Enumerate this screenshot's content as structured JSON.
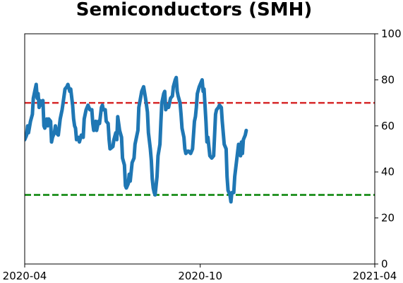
{
  "chart_data": {
    "type": "line",
    "title": "Semiconductors (SMH)",
    "xlabel": "",
    "ylabel": "",
    "x_axis": {
      "type": "date",
      "range": [
        "2020-04-01",
        "2021-04-01"
      ],
      "ticks": [
        {
          "value": "2020-04-01",
          "label": "2020-04"
        },
        {
          "value": "2020-10-01",
          "label": "2020-10"
        },
        {
          "value": "2021-04-01",
          "label": "2021-04"
        }
      ]
    },
    "y_axis": {
      "side": "right",
      "range": [
        0,
        100
      ],
      "ticks": [
        0,
        20,
        40,
        60,
        80,
        100
      ]
    },
    "grid": false,
    "reference_lines": [
      {
        "value": 70,
        "color": "#d62728",
        "style": "dashed"
      },
      {
        "value": 30,
        "color": "#008000",
        "style": "dashed"
      }
    ],
    "series": [
      {
        "color": "#1f77b4",
        "points": [
          [
            "2020-04-01",
            54
          ],
          [
            "2020-04-03",
            56
          ],
          [
            "2020-04-04",
            60
          ],
          [
            "2020-04-05",
            57
          ],
          [
            "2020-04-07",
            62
          ],
          [
            "2020-04-09",
            65
          ],
          [
            "2020-04-10",
            72
          ],
          [
            "2020-04-12",
            76
          ],
          [
            "2020-04-13",
            78
          ],
          [
            "2020-04-14",
            72
          ],
          [
            "2020-04-15",
            74
          ],
          [
            "2020-04-16",
            68
          ],
          [
            "2020-04-17",
            71
          ],
          [
            "2020-04-18",
            69
          ],
          [
            "2020-04-20",
            71
          ],
          [
            "2020-04-21",
            60
          ],
          [
            "2020-04-22",
            59
          ],
          [
            "2020-04-24",
            63
          ],
          [
            "2020-04-25",
            60
          ],
          [
            "2020-04-26",
            63
          ],
          [
            "2020-04-28",
            62
          ],
          [
            "2020-04-29",
            53
          ],
          [
            "2020-04-30",
            55
          ],
          [
            "2020-05-02",
            57
          ],
          [
            "2020-05-03",
            60
          ],
          [
            "2020-05-04",
            57
          ],
          [
            "2020-05-06",
            56
          ],
          [
            "2020-05-08",
            63
          ],
          [
            "2020-05-10",
            67
          ],
          [
            "2020-05-11",
            70
          ],
          [
            "2020-05-13",
            76
          ],
          [
            "2020-05-15",
            77
          ],
          [
            "2020-05-16",
            78
          ],
          [
            "2020-05-18",
            75
          ],
          [
            "2020-05-19",
            76
          ],
          [
            "2020-05-21",
            69
          ],
          [
            "2020-05-22",
            63
          ],
          [
            "2020-05-23",
            60
          ],
          [
            "2020-05-24",
            59
          ],
          [
            "2020-05-25",
            54
          ],
          [
            "2020-05-27",
            55
          ],
          [
            "2020-05-28",
            53
          ],
          [
            "2020-05-30",
            56
          ],
          [
            "2020-06-01",
            55
          ],
          [
            "2020-06-02",
            63
          ],
          [
            "2020-06-04",
            67
          ],
          [
            "2020-06-06",
            69
          ],
          [
            "2020-06-08",
            67
          ],
          [
            "2020-06-10",
            67
          ],
          [
            "2020-06-11",
            61
          ],
          [
            "2020-06-12",
            58
          ],
          [
            "2020-06-14",
            62
          ],
          [
            "2020-06-15",
            58
          ],
          [
            "2020-06-17",
            62
          ],
          [
            "2020-06-18",
            61
          ],
          [
            "2020-06-20",
            68
          ],
          [
            "2020-06-21",
            69
          ],
          [
            "2020-06-22",
            67
          ],
          [
            "2020-06-24",
            67
          ],
          [
            "2020-06-25",
            62
          ],
          [
            "2020-06-27",
            61
          ],
          [
            "2020-06-28",
            54
          ],
          [
            "2020-06-29",
            50
          ],
          [
            "2020-07-02",
            51
          ],
          [
            "2020-07-03",
            54
          ],
          [
            "2020-07-05",
            57
          ],
          [
            "2020-07-06",
            54
          ],
          [
            "2020-07-07",
            64
          ],
          [
            "2020-07-09",
            58
          ],
          [
            "2020-07-11",
            55
          ],
          [
            "2020-07-12",
            46
          ],
          [
            "2020-07-14",
            43
          ],
          [
            "2020-07-15",
            34
          ],
          [
            "2020-07-16",
            33
          ],
          [
            "2020-07-18",
            35
          ],
          [
            "2020-07-19",
            39
          ],
          [
            "2020-07-20",
            36
          ],
          [
            "2020-07-22",
            44
          ],
          [
            "2020-07-24",
            46
          ],
          [
            "2020-07-25",
            52
          ],
          [
            "2020-07-27",
            56
          ],
          [
            "2020-07-28",
            58
          ],
          [
            "2020-07-29",
            68
          ],
          [
            "2020-08-01",
            75
          ],
          [
            "2020-08-03",
            77
          ],
          [
            "2020-08-05",
            72
          ],
          [
            "2020-08-07",
            66
          ],
          [
            "2020-08-08",
            57
          ],
          [
            "2020-08-10",
            50
          ],
          [
            "2020-08-11",
            45
          ],
          [
            "2020-08-12",
            37
          ],
          [
            "2020-08-13",
            33
          ],
          [
            "2020-08-14",
            31
          ],
          [
            "2020-08-15",
            30
          ],
          [
            "2020-08-17",
            38
          ],
          [
            "2020-08-18",
            47
          ],
          [
            "2020-08-20",
            52
          ],
          [
            "2020-08-21",
            62
          ],
          [
            "2020-08-22",
            70
          ],
          [
            "2020-08-24",
            74
          ],
          [
            "2020-08-25",
            75
          ],
          [
            "2020-08-26",
            67
          ],
          [
            "2020-08-28",
            69
          ],
          [
            "2020-08-29",
            68
          ],
          [
            "2020-08-31",
            72
          ],
          [
            "2020-09-02",
            73
          ],
          [
            "2020-09-03",
            77
          ],
          [
            "2020-09-05",
            80
          ],
          [
            "2020-09-06",
            81
          ],
          [
            "2020-09-07",
            75
          ],
          [
            "2020-09-08",
            73
          ],
          [
            "2020-09-10",
            70
          ],
          [
            "2020-09-11",
            65
          ],
          [
            "2020-09-12",
            59
          ],
          [
            "2020-09-14",
            55
          ],
          [
            "2020-09-15",
            50
          ],
          [
            "2020-09-16",
            48
          ],
          [
            "2020-09-18",
            49
          ],
          [
            "2020-09-19",
            49
          ],
          [
            "2020-09-21",
            48
          ],
          [
            "2020-09-23",
            50
          ],
          [
            "2020-09-25",
            62
          ],
          [
            "2020-09-26",
            64
          ],
          [
            "2020-09-27",
            68
          ],
          [
            "2020-09-28",
            74
          ],
          [
            "2020-09-30",
            77
          ],
          [
            "2020-10-01",
            78
          ],
          [
            "2020-10-03",
            80
          ],
          [
            "2020-10-04",
            75
          ],
          [
            "2020-10-05",
            76
          ],
          [
            "2020-10-07",
            62
          ],
          [
            "2020-10-08",
            53
          ],
          [
            "2020-10-09",
            55
          ],
          [
            "2020-10-11",
            47
          ],
          [
            "2020-10-13",
            46
          ],
          [
            "2020-10-15",
            47
          ],
          [
            "2020-10-17",
            65
          ],
          [
            "2020-10-18",
            67
          ],
          [
            "2020-10-20",
            68
          ],
          [
            "2020-10-21",
            69
          ],
          [
            "2020-10-23",
            68
          ],
          [
            "2020-10-24",
            62
          ],
          [
            "2020-10-26",
            52
          ],
          [
            "2020-10-28",
            50
          ],
          [
            "2020-10-29",
            38
          ],
          [
            "2020-10-30",
            32
          ],
          [
            "2020-11-01",
            30
          ],
          [
            "2020-11-02",
            27
          ],
          [
            "2020-11-03",
            31
          ],
          [
            "2020-11-05",
            31
          ],
          [
            "2020-11-06",
            38
          ],
          [
            "2020-11-08",
            45
          ],
          [
            "2020-11-10",
            52
          ],
          [
            "2020-11-11",
            50
          ],
          [
            "2020-11-12",
            47
          ],
          [
            "2020-11-13",
            53
          ],
          [
            "2020-11-14",
            48
          ],
          [
            "2020-11-15",
            54
          ],
          [
            "2020-11-17",
            56
          ],
          [
            "2020-11-18",
            58
          ]
        ]
      }
    ]
  }
}
